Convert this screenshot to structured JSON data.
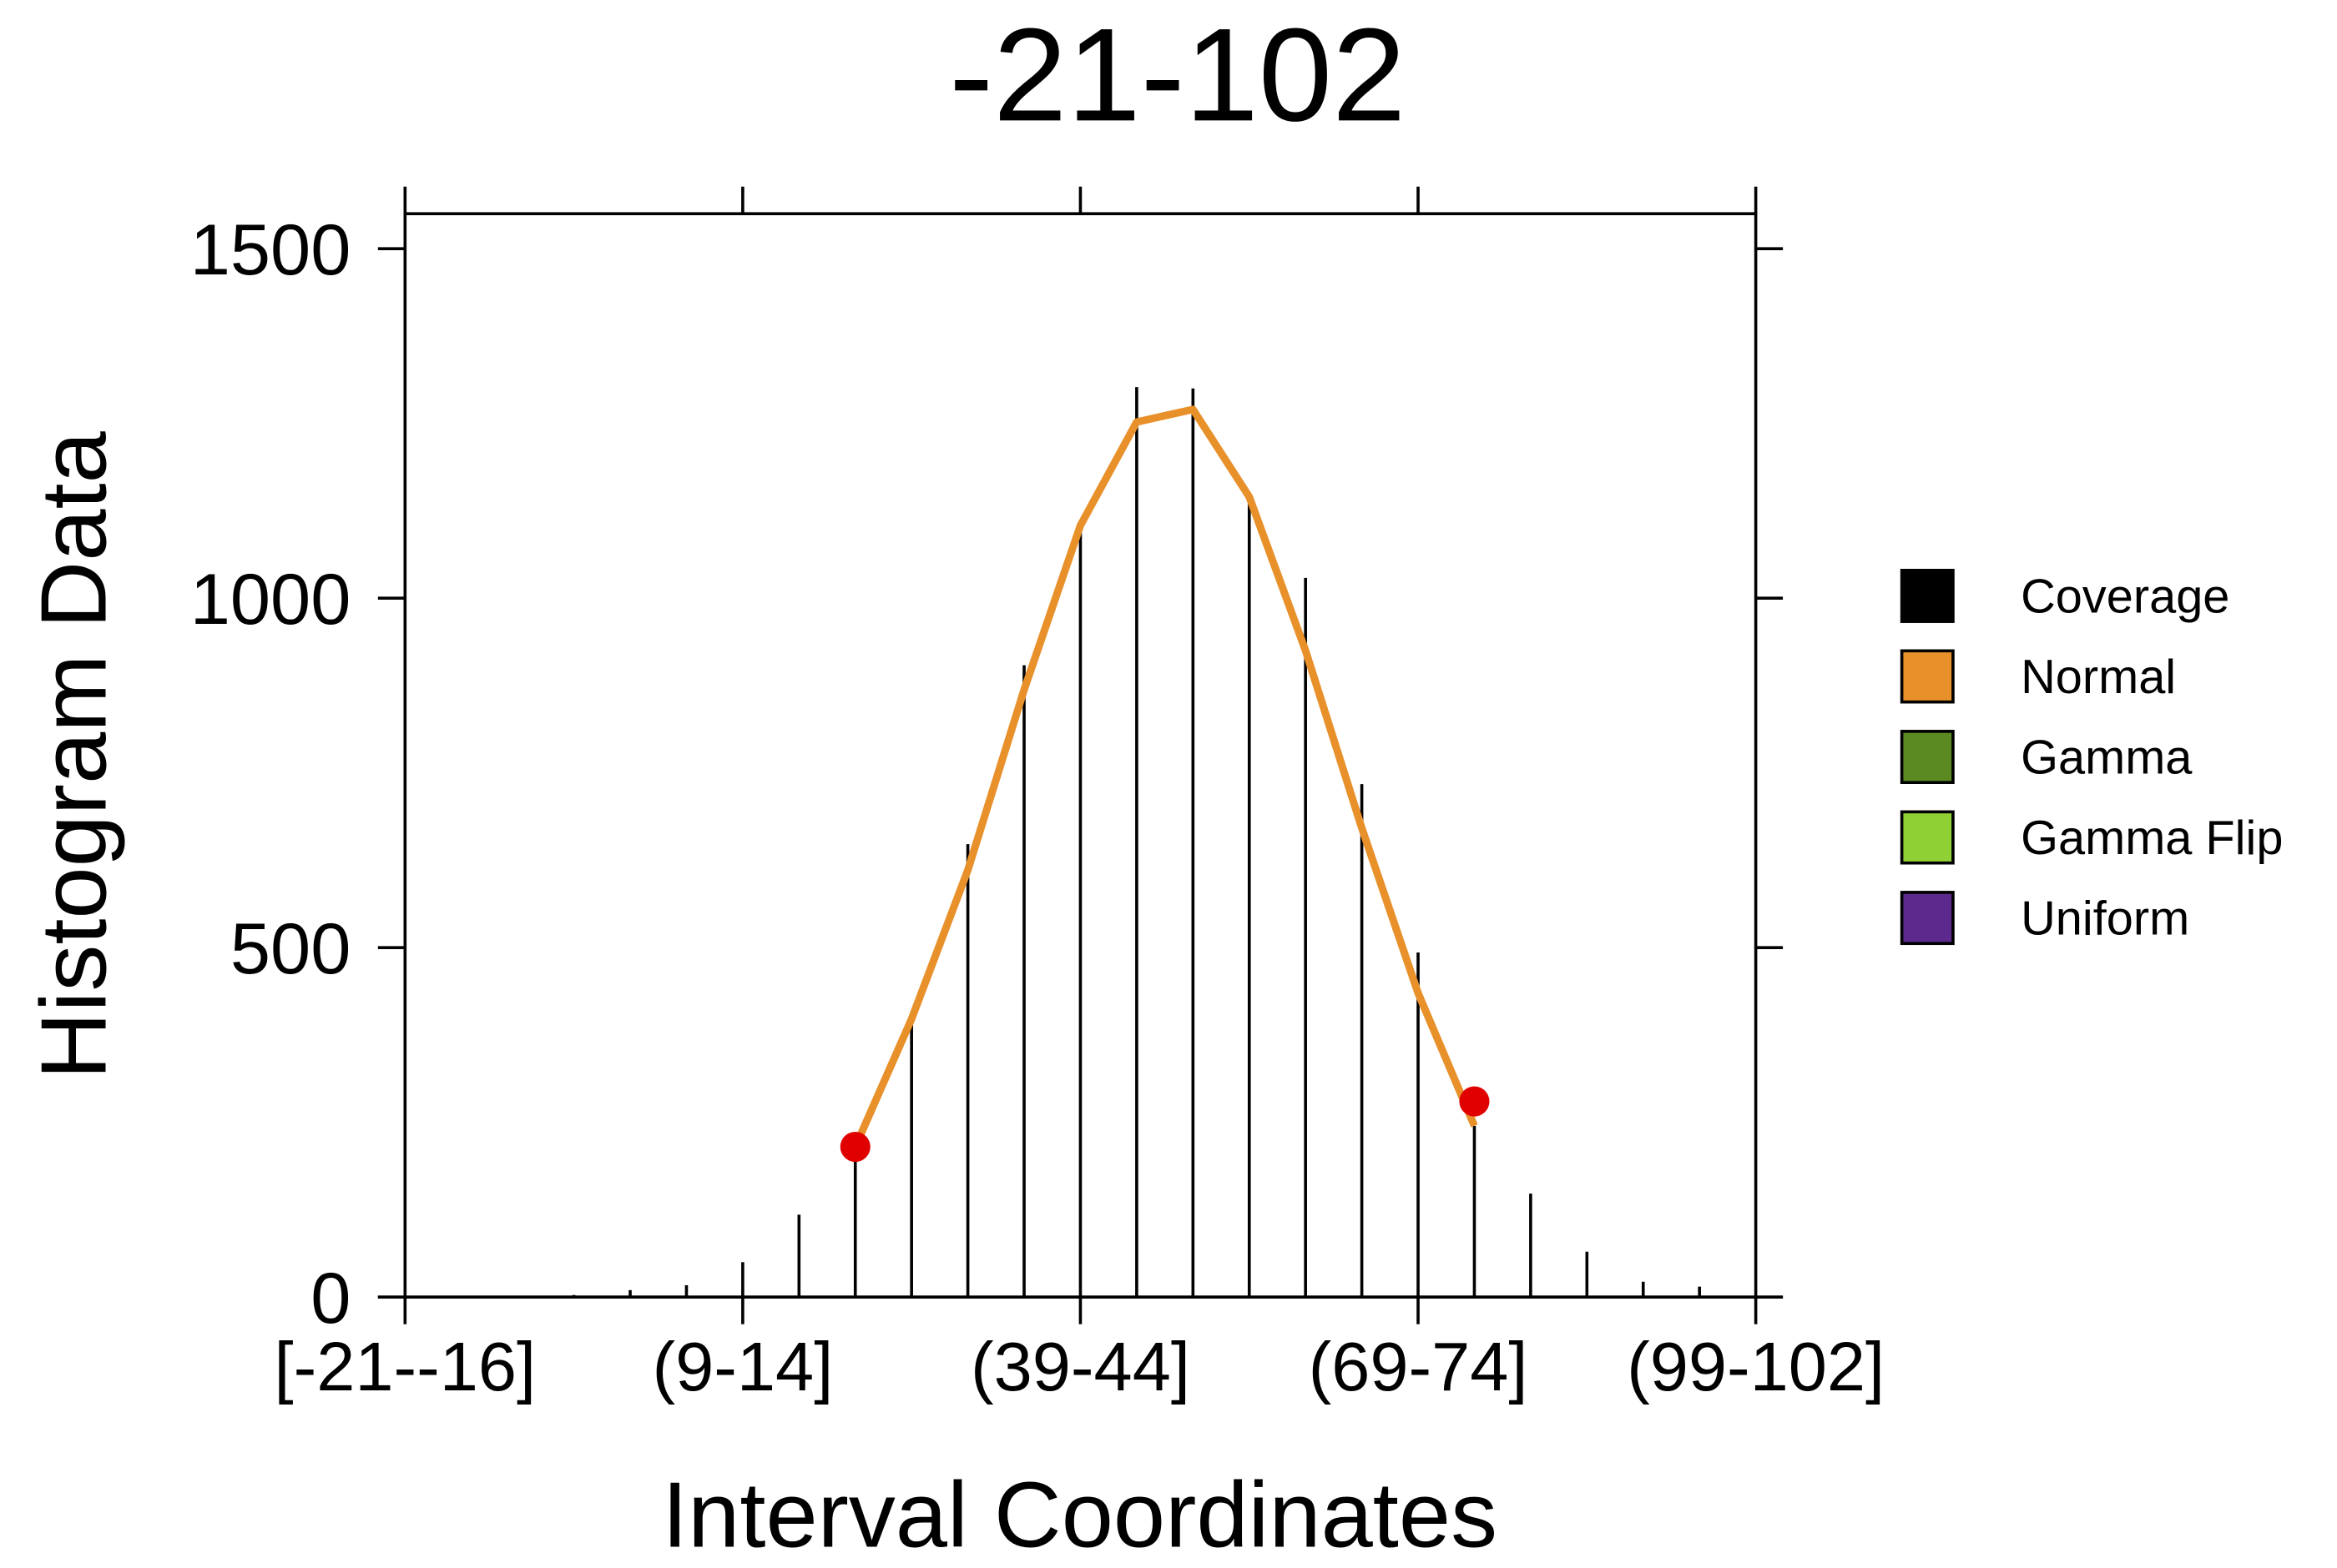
{
  "chart_data": {
    "type": "bar",
    "title": "-21-102",
    "x_label": "Interval Coordinates",
    "y_label": "Histogram Data",
    "categories": [
      "[-21--16]",
      null,
      null,
      null,
      null,
      null,
      "(9-14]",
      null,
      null,
      null,
      null,
      null,
      "(39-44]",
      null,
      null,
      null,
      null,
      null,
      "(69-74]",
      null,
      null,
      null,
      null,
      null,
      "(99-102]"
    ],
    "series": [
      {
        "name": "Coverage",
        "color": "#000000",
        "values": [
          0,
          1,
          2,
          3,
          10,
          17,
          50,
          118,
          205,
          400,
          648,
          904,
          1102,
          1302,
          1300,
          1138,
          1029,
          734,
          493,
          245,
          148,
          65,
          22,
          15,
          0
        ]
      },
      {
        "name": "Normal",
        "color": "#e8902a",
        "values": [
          null,
          null,
          null,
          null,
          null,
          null,
          null,
          null,
          215,
          398,
          611,
          869,
          1104,
          1252,
          1270,
          1145,
          925,
          671,
          435,
          245,
          null,
          null,
          null,
          null,
          null
        ]
      },
      {
        "name": "Gamma",
        "color": "#5b8a22",
        "values": [
          null,
          null,
          null,
          null,
          null,
          null,
          null,
          null,
          null,
          null,
          null,
          null,
          null,
          null,
          null,
          null,
          null,
          null,
          null,
          null,
          null,
          null,
          null,
          null,
          null
        ]
      },
      {
        "name": "Gamma Flip",
        "color": "#8fd134",
        "values": [
          null,
          null,
          null,
          null,
          null,
          null,
          null,
          null,
          null,
          null,
          null,
          null,
          null,
          null,
          null,
          null,
          null,
          null,
          null,
          null,
          null,
          null,
          null,
          null,
          null
        ]
      },
      {
        "name": "Uniform",
        "color": "#5c2a8c",
        "values": [
          null,
          null,
          null,
          null,
          null,
          null,
          null,
          null,
          null,
          null,
          null,
          null,
          null,
          null,
          null,
          null,
          null,
          null,
          null,
          null,
          null,
          null,
          null,
          null,
          null
        ]
      }
    ],
    "points": {
      "color": "#e00000",
      "values": [
        null,
        null,
        null,
        null,
        null,
        null,
        null,
        null,
        215,
        null,
        null,
        null,
        null,
        null,
        null,
        null,
        null,
        null,
        null,
        280,
        null,
        null,
        null,
        null,
        null
      ]
    },
    "ylim": [
      0,
      1550
    ],
    "yticks": [
      0,
      500,
      1000,
      1500
    ]
  }
}
